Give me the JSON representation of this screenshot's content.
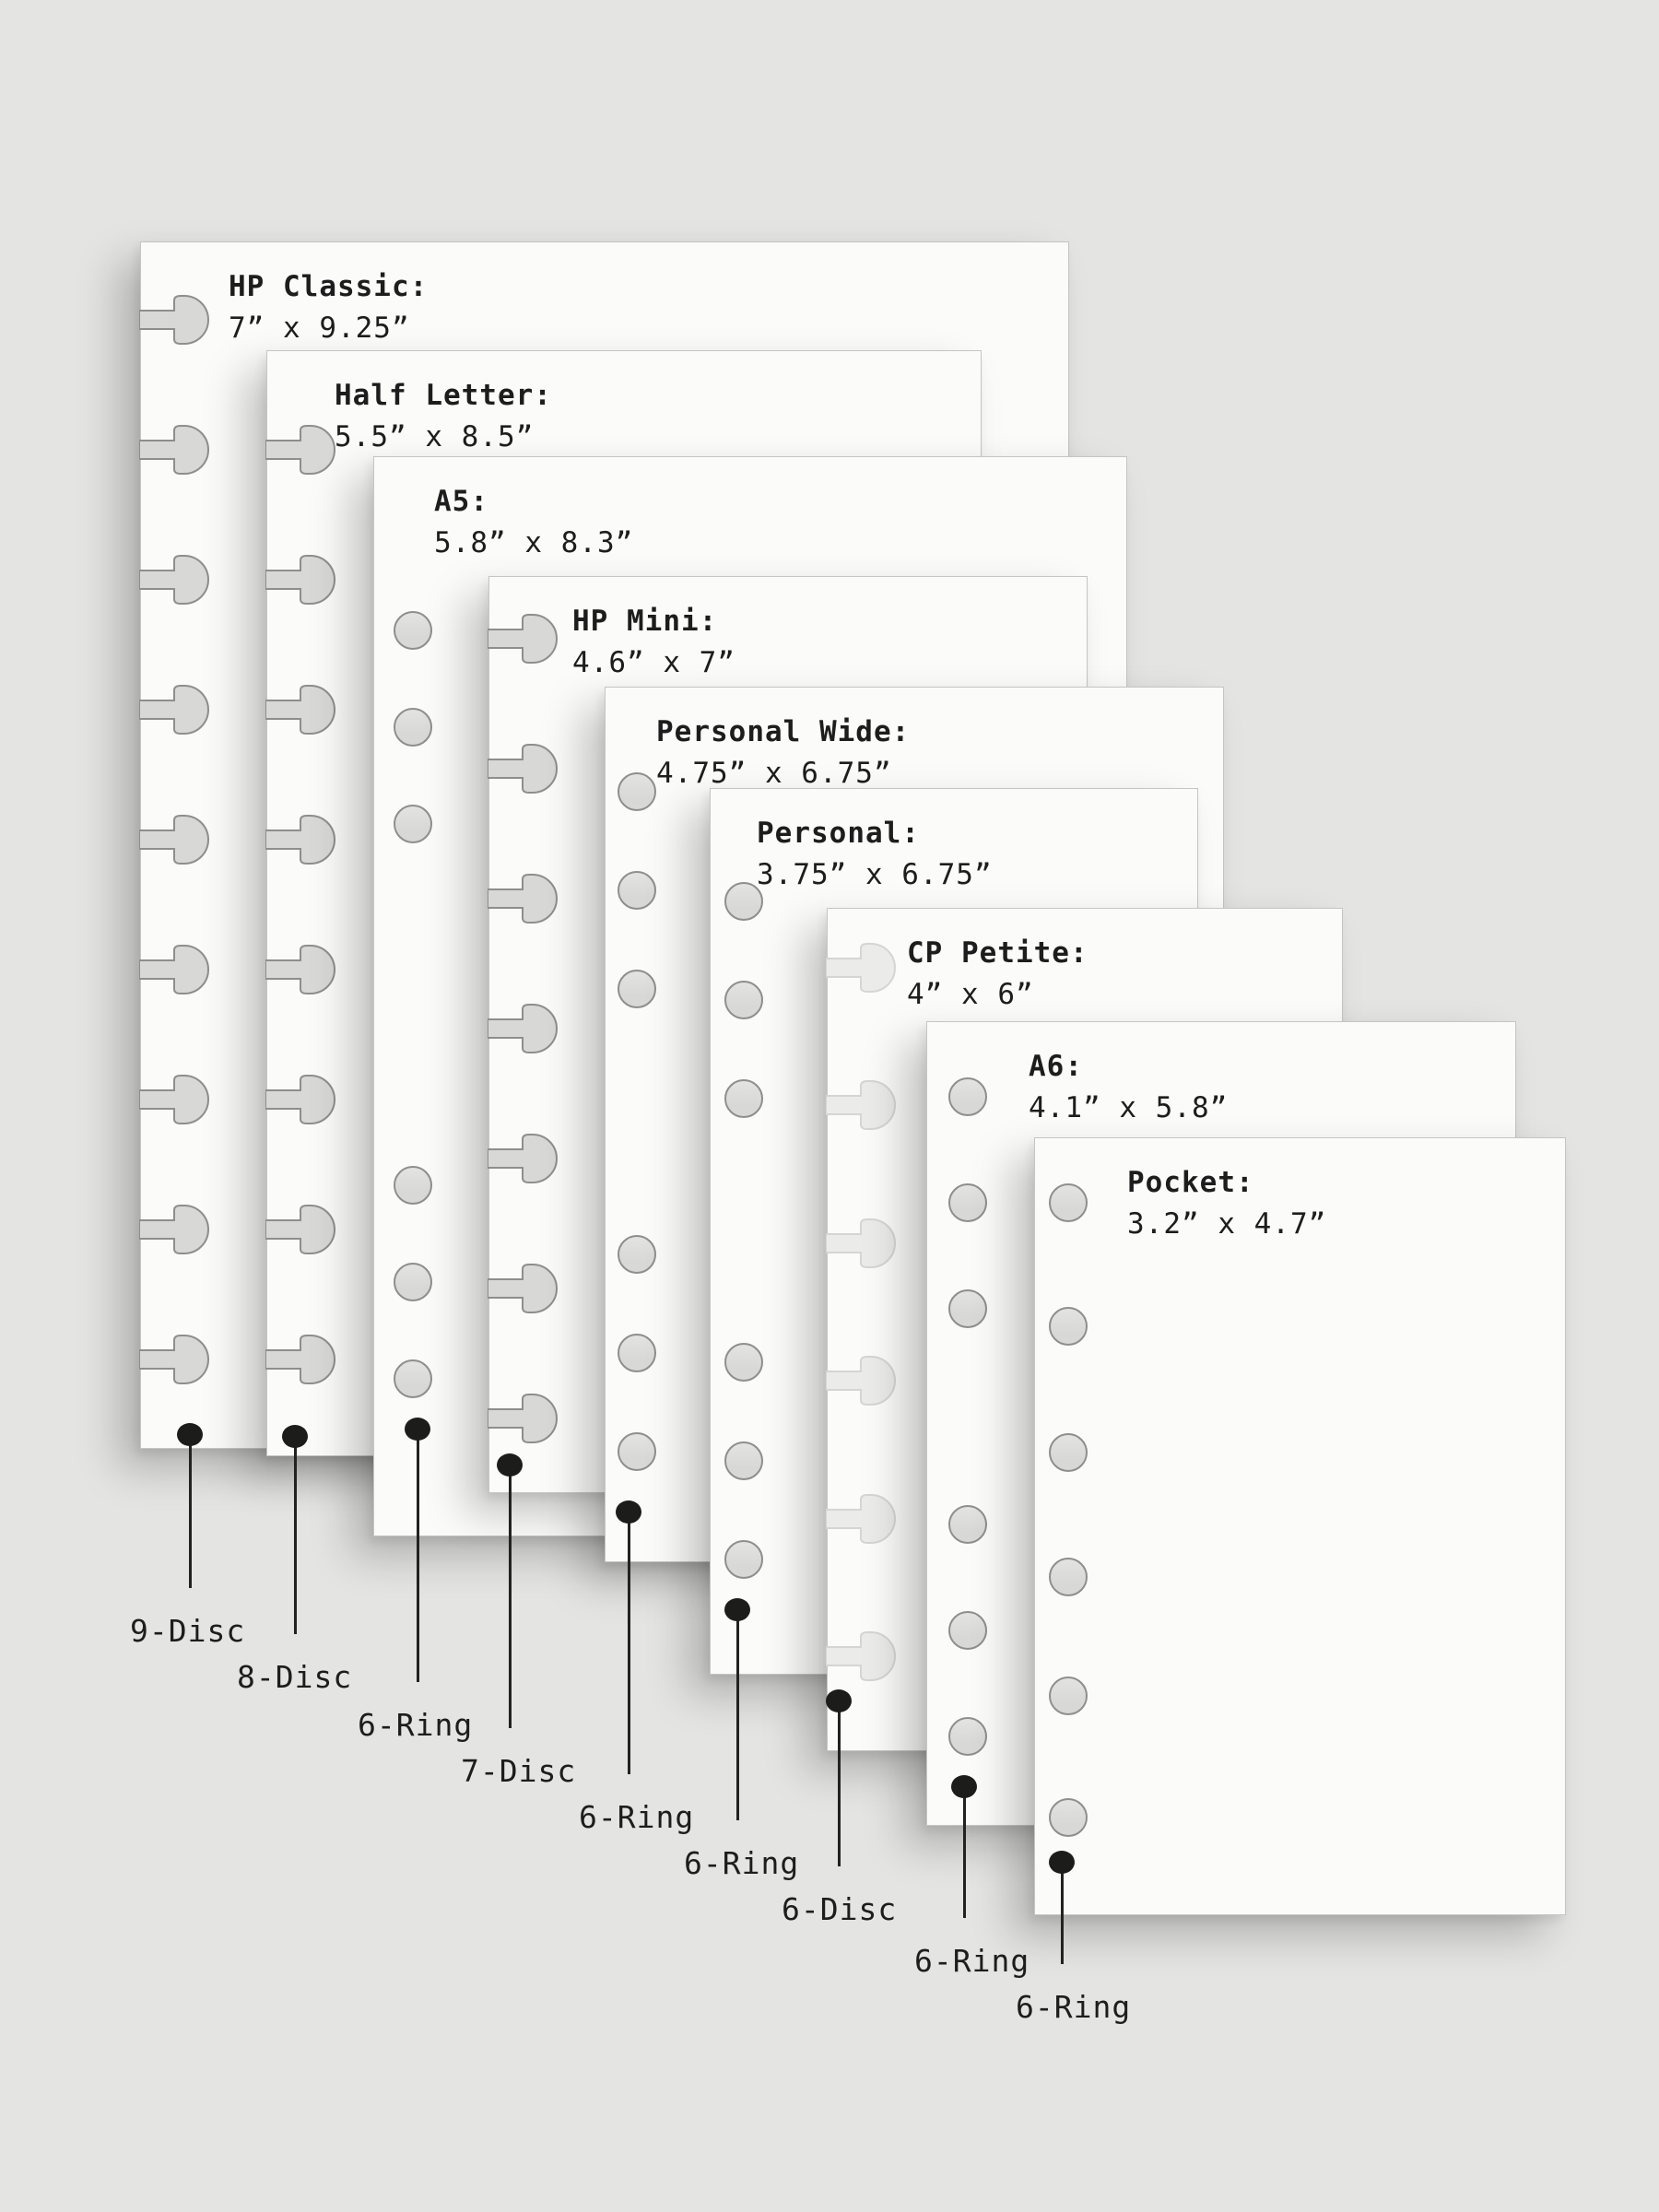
{
  "page": {
    "background_color": "#e4e4e2",
    "sheet_color": "#fbfbfa",
    "ink_color": "#1d1d1d",
    "hole_fill_color": "#d8d8d7",
    "hole_fill_light_color": "#ebebea"
  },
  "sheets": [
    {
      "id": "hp-classic",
      "title": "HP Classic:",
      "dims": "7” x 9.25”",
      "binding_label": "9-Disc",
      "binding": {
        "type": "disc",
        "count": 9
      }
    },
    {
      "id": "half-letter",
      "title": "Half Letter:",
      "dims": "5.5” x 8.5”",
      "binding_label": "8-Disc",
      "binding": {
        "type": "disc",
        "count": 8
      }
    },
    {
      "id": "a5",
      "title": "A5:",
      "dims": "5.8” x 8.3”",
      "binding_label": "6-Ring",
      "binding": {
        "type": "ring",
        "count": 6
      }
    },
    {
      "id": "hp-mini",
      "title": "HP Mini:",
      "dims": "4.6” x 7”",
      "binding_label": "7-Disc",
      "binding": {
        "type": "disc",
        "count": 7
      }
    },
    {
      "id": "personal-wide",
      "title": "Personal Wide:",
      "dims": "4.75” x 6.75”",
      "binding_label": "6-Ring",
      "binding": {
        "type": "ring",
        "count": 6
      }
    },
    {
      "id": "personal",
      "title": "Personal:",
      "dims": "3.75” x 6.75”",
      "binding_label": "6-Ring",
      "binding": {
        "type": "ring",
        "count": 6
      }
    },
    {
      "id": "cp-petite",
      "title": "CP Petite:",
      "dims": "4” x 6”",
      "binding_label": "6-Disc",
      "binding": {
        "type": "disc",
        "count": 6
      }
    },
    {
      "id": "a6",
      "title": "A6:",
      "dims": "4.1” x 5.8”",
      "binding_label": "6-Ring",
      "binding": {
        "type": "ring",
        "count": 6
      }
    },
    {
      "id": "pocket",
      "title": "Pocket:",
      "dims": "3.2” x 4.7”",
      "binding_label": "6-Ring",
      "binding": {
        "type": "ring",
        "count": 6
      }
    }
  ]
}
